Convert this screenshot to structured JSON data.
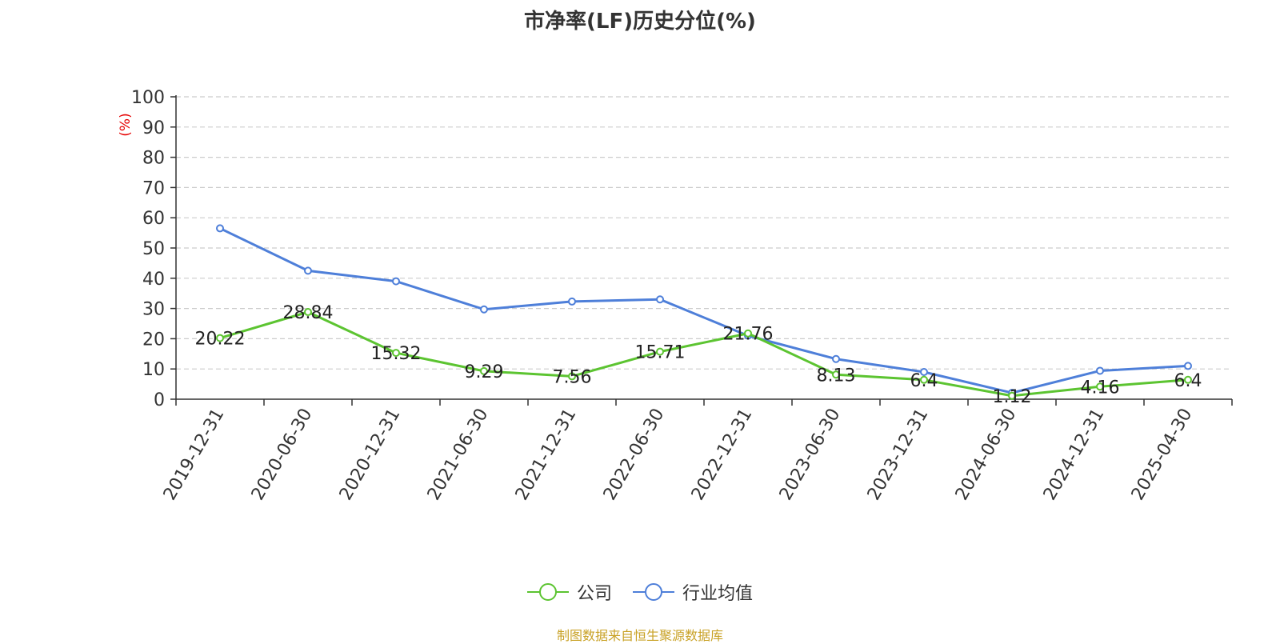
{
  "chart_data": {
    "type": "line",
    "title": "市净率(LF)历史分位(%)",
    "ylabel": "(%)",
    "xlabel": "",
    "ylim": [
      0,
      100
    ],
    "yticks": [
      0,
      10,
      20,
      30,
      40,
      50,
      60,
      70,
      80,
      90,
      100
    ],
    "grid": true,
    "legend_position": "bottom",
    "categories": [
      "2019-12-31",
      "2020-06-30",
      "2020-12-31",
      "2021-06-30",
      "2021-12-31",
      "2022-06-30",
      "2022-12-31",
      "2023-06-30",
      "2023-12-31",
      "2024-06-30",
      "2024-12-31",
      "2025-04-30"
    ],
    "series": [
      {
        "name": "公司",
        "color": "#5cc431",
        "values": [
          20.22,
          28.84,
          15.32,
          9.29,
          7.56,
          15.71,
          21.76,
          8.13,
          6.4,
          1.12,
          4.16,
          6.4
        ],
        "labels": [
          "20.22",
          "28.84",
          "15.32",
          "9.29",
          "7.56",
          "15.71",
          "21.76",
          "8.13",
          "6.4",
          "1.12",
          "4.16",
          "6.4"
        ]
      },
      {
        "name": "行业均值",
        "color": "#4e7fd9",
        "values": [
          56.5,
          42.5,
          39,
          29.7,
          32.3,
          33,
          21,
          13.3,
          9,
          2.1,
          9.4,
          11
        ]
      }
    ],
    "source": "制图数据来自恒生聚源数据库"
  }
}
